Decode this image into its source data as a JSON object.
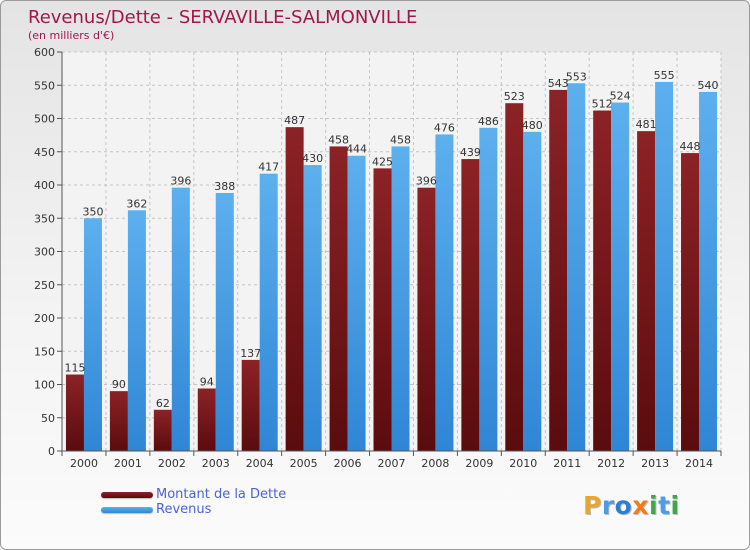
{
  "header": {
    "title": "Revenus/Dette - SERVAVILLE-SALMONVILLE",
    "subtitle": "(en milliers d'€)"
  },
  "logo": {
    "text": "Proxiti",
    "letters": [
      {
        "char": "P",
        "color": "#e8a62a"
      },
      {
        "char": "r",
        "color": "#4e9de0"
      },
      {
        "char": "o",
        "color": "#2f7fcf"
      },
      {
        "char": "x",
        "color": "#f07c1e"
      },
      {
        "char": "i",
        "color": "#3fa64a"
      },
      {
        "char": "t",
        "color": "#4e9de0"
      },
      {
        "char": "i",
        "color": "#3fa64a"
      }
    ]
  },
  "chart_data": {
    "type": "bar",
    "title": "Revenus/Dette - SERVAVILLE-SALMONVILLE",
    "subtitle": "(en milliers d'€)",
    "categories": [
      "2000",
      "2001",
      "2002",
      "2003",
      "2004",
      "2005",
      "2006",
      "2007",
      "2008",
      "2009",
      "2010",
      "2011",
      "2012",
      "2013",
      "2014"
    ],
    "series": [
      {
        "name": "Montant de la Dette",
        "color": "#7a1519",
        "values": [
          115,
          90,
          62,
          94,
          137,
          487,
          458,
          425,
          396,
          439,
          523,
          543,
          512,
          481,
          448
        ]
      },
      {
        "name": "Revenus",
        "color": "#4da3e6",
        "values": [
          350,
          362,
          396,
          388,
          417,
          430,
          444,
          458,
          476,
          486,
          480,
          553,
          524,
          555,
          540
        ]
      }
    ],
    "ylim": [
      0,
      600
    ],
    "yticks": [
      0,
      50,
      100,
      150,
      200,
      250,
      300,
      350,
      400,
      450,
      500,
      550,
      600
    ],
    "grid": true,
    "legend_position": "bottom-left"
  }
}
